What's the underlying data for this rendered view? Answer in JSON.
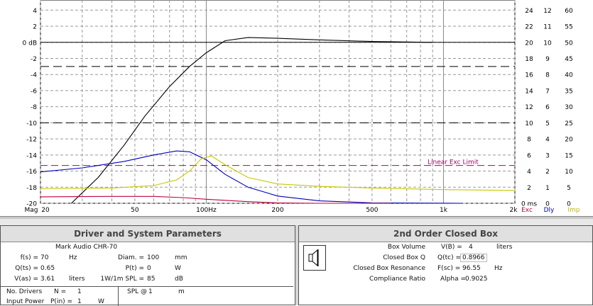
{
  "chart_data": {
    "type": "line",
    "xscale": "log",
    "xlim": [
      20,
      2000
    ],
    "x_tick_labels": [
      "Mag",
      "20",
      "50",
      "100Hz",
      "200",
      "500",
      "1k",
      "2k",
      "Exc",
      "Dly",
      "Imp"
    ],
    "ylim": [
      -20,
      4
    ],
    "y_tick_labels": [
      "4",
      "2",
      "0 dB",
      "-2",
      "-4",
      "-6",
      "-8",
      "-10",
      "-12",
      "-14",
      "-16",
      "-18",
      "-20"
    ],
    "right_axis_1": [
      "24",
      "22",
      "20",
      "18",
      "16",
      "14",
      "12",
      "10",
      "8",
      "6",
      "4",
      "2",
      "0 ms"
    ],
    "right_axis_2": [
      "12",
      "11",
      "10",
      "9",
      "8",
      "7",
      "6",
      "5",
      "4",
      "3",
      "2",
      "1",
      "0"
    ],
    "right_axis_3": [
      "60",
      "55",
      "50",
      "45",
      "40",
      "35",
      "30",
      "25",
      "20",
      "15",
      "10",
      "5",
      "0"
    ],
    "annotation": "Linear Exc Limit",
    "reference_lines": [
      {
        "y": 0,
        "style": "solid"
      },
      {
        "y": -3,
        "style": "dashed"
      },
      {
        "y": -10,
        "style": "dashed"
      }
    ],
    "exc_limit_y": -15.3,
    "series": [
      {
        "color": "#000000",
        "x": [
          27,
          35,
          45,
          55,
          70,
          85,
          100,
          120,
          150,
          200,
          300,
          500,
          900
        ],
        "y": [
          -20,
          -16.8,
          -12.8,
          -9.2,
          -5.5,
          -3,
          -1.3,
          0.2,
          0.6,
          0.5,
          0.3,
          0.1,
          0
        ]
      },
      {
        "color": "#0000c0",
        "x": [
          20,
          30,
          45,
          60,
          75,
          85,
          100,
          120,
          150,
          200,
          300,
          500,
          1200
        ],
        "y": [
          -16.1,
          -15.6,
          -14.8,
          -14,
          -13.5,
          -13.6,
          -14.6,
          -16.4,
          -18,
          -19.1,
          -19.7,
          -19.95,
          -20
        ]
      },
      {
        "color": "#c8c800",
        "x": [
          20,
          40,
          60,
          75,
          85,
          95,
          105,
          120,
          150,
          200,
          300,
          500,
          1000,
          2000
        ],
        "y": [
          -18.2,
          -18.1,
          -17.8,
          -17.1,
          -16,
          -14.5,
          -14.1,
          -15.2,
          -16.8,
          -17.6,
          -17.9,
          -18.1,
          -18.3,
          -18.4
        ]
      },
      {
        "color": "#c00040",
        "x": [
          20,
          40,
          60,
          80,
          100,
          150,
          200,
          300,
          600
        ],
        "y": [
          -19.2,
          -19.15,
          -19.15,
          -19.3,
          -19.5,
          -19.8,
          -19.95,
          -20,
          -20
        ]
      }
    ]
  },
  "driver_panel": {
    "title": "Driver and System Parameters",
    "model": "Mark Audio  CHR-70",
    "fs_label": "f(s) =",
    "fs_value": "70",
    "fs_unit": "Hz",
    "qts_label": "Q(ts) =",
    "qts_value": "0.65",
    "vas_label": "V(as) =",
    "vas_value": "3.61",
    "vas_unit": "liters",
    "diam_label": "Diam. =",
    "diam_value": "100",
    "diam_unit": "mm",
    "pt_label": "P(t) =",
    "pt_value": "0",
    "pt_unit": "W",
    "spl_label": "1W/1m SPL =",
    "spl_value": "85",
    "spl_unit": "dB",
    "drivers_label": "No. Drivers",
    "n_label": "N =",
    "n_value": "1",
    "splat_label": "SPL @",
    "splat_value": "1",
    "splat_unit": "m",
    "power_label": "Input Power",
    "pin_label": "P(in) =",
    "pin_value": "1",
    "pin_unit": "W"
  },
  "box_panel": {
    "title": "2nd Order Closed Box",
    "rows": [
      {
        "label": "Box Volume",
        "expr": "V(B) =",
        "value": "4",
        "unit": "liters"
      },
      {
        "label": "Closed Box Q",
        "expr": "Q(tc) =",
        "value": "0.8966",
        "unit": ""
      },
      {
        "label": "Closed Box Resonance",
        "expr": "F(sc) =",
        "value": "96.55",
        "unit": "Hz"
      },
      {
        "label": "Compliance Ratio",
        "expr": "Alpha =",
        "value": "0.9025",
        "unit": ""
      }
    ]
  }
}
